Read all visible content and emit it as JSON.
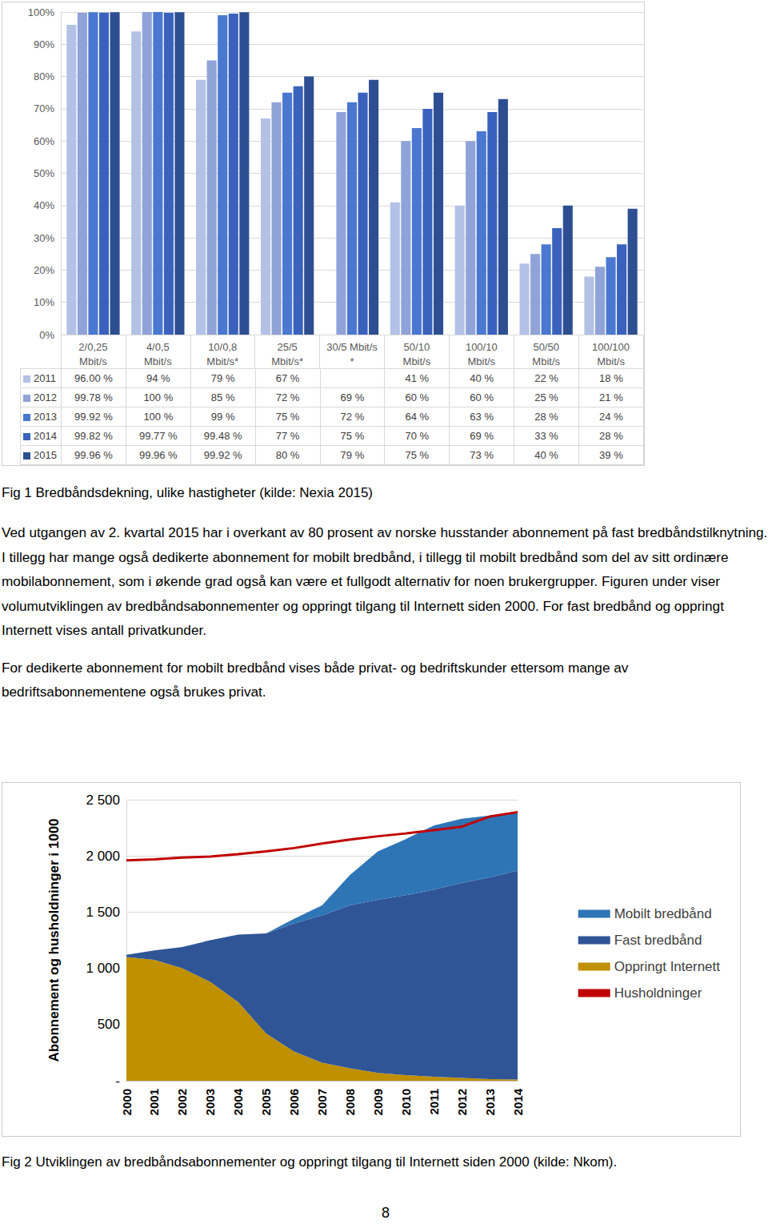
{
  "chart_data": [
    {
      "type": "bar",
      "caption": "Fig 1 Bredbåndsdekning, ulike hastigheter (kilde: Nexia 2015)",
      "categories": [
        "2/0,25\nMbit/s",
        "4/0,5\nMbit/s",
        "10/0,8\nMbit/s*",
        "25/5\nMbit/s*",
        "30/5 Mbit/s\n*",
        "50/10\nMbit/s",
        "100/10\nMbit/s",
        "50/50\nMbit/s",
        "100/100\nMbit/s"
      ],
      "series": [
        {
          "name": "2011",
          "color": "#b4c1e6",
          "values": [
            96,
            94,
            79,
            67,
            null,
            41,
            40,
            22,
            18
          ],
          "value_labels": [
            "96.00 %",
            "94 %",
            "79 %",
            "67 %",
            null,
            "41 %",
            "40 %",
            "22 %",
            "18 %"
          ]
        },
        {
          "name": "2012",
          "color": "#8fa3d8",
          "values": [
            99.78,
            100,
            85,
            72,
            69,
            60,
            60,
            25,
            21
          ],
          "value_labels": [
            "99.78 %",
            "100 %",
            "85 %",
            "72 %",
            "69 %",
            "60 %",
            "60 %",
            "25 %",
            "21 %"
          ]
        },
        {
          "name": "2013",
          "color": "#4a78d0",
          "values": [
            99.92,
            100,
            99,
            75,
            72,
            64,
            63,
            28,
            24
          ],
          "value_labels": [
            "99.92 %",
            "100 %",
            "99 %",
            "75 %",
            "72 %",
            "64 %",
            "63 %",
            "28 %",
            "24 %"
          ]
        },
        {
          "name": "2014",
          "color": "#3a62bd",
          "values": [
            99.82,
            99.77,
            99.48,
            77,
            75,
            70,
            69,
            33,
            28
          ],
          "value_labels": [
            "99.82 %",
            "99.77 %",
            "99.48 %",
            "77 %",
            "75 %",
            "70 %",
            "69 %",
            "33 %",
            "28 %"
          ]
        },
        {
          "name": "2015",
          "color": "#2d4f92",
          "values": [
            99.96,
            99.96,
            99.92,
            80,
            79,
            75,
            73,
            40,
            39
          ],
          "value_labels": [
            "99.96 %",
            "99.96 %",
            "99.92 %",
            "80 %",
            "79 %",
            "75 %",
            "73 %",
            "40 %",
            "39 %"
          ]
        }
      ],
      "ylim": [
        0,
        100
      ],
      "yticks": [
        {
          "value": 0,
          "label": "0%"
        },
        {
          "value": 10,
          "label": "10%"
        },
        {
          "value": 20,
          "label": "20%"
        },
        {
          "value": 30,
          "label": "30%"
        },
        {
          "value": 40,
          "label": "40%"
        },
        {
          "value": 50,
          "label": "50%"
        },
        {
          "value": 60,
          "label": "60%"
        },
        {
          "value": 70,
          "label": "70%"
        },
        {
          "value": 80,
          "label": "80%"
        },
        {
          "value": 90,
          "label": "90%"
        },
        {
          "value": 100,
          "label": "100%"
        }
      ],
      "grid": true
    },
    {
      "type": "area",
      "caption": "Fig 2 Utviklingen av bredbåndsabonnementer og oppringt tilgang til Internett siden 2000 (kilde: Nkom).",
      "ylabel": "Abonnement og husholdninger i 1000",
      "categories": [
        "2000",
        "2001",
        "2002",
        "2003",
        "2004",
        "2005",
        "2006",
        "2007",
        "2008",
        "2009",
        "2010",
        "2011",
        "2012",
        "2013",
        "2014"
      ],
      "series": [
        {
          "name": "Mobilt bredbånd",
          "type": "area",
          "color": "#2e75b6",
          "values": [
            0,
            0,
            0,
            0,
            0,
            0,
            40,
            90,
            270,
            430,
            500,
            570,
            570,
            550,
            510
          ]
        },
        {
          "name": "Fast bredbånd",
          "type": "area",
          "color": "#2f5597",
          "values": [
            20,
            85,
            190,
            370,
            600,
            890,
            1140,
            1310,
            1450,
            1540,
            1600,
            1665,
            1735,
            1795,
            1860
          ]
        },
        {
          "name": "Oppringt Internett",
          "type": "area",
          "color": "#bf9000",
          "values": [
            1100,
            1075,
            1000,
            880,
            700,
            420,
            260,
            160,
            110,
            70,
            50,
            35,
            25,
            15,
            10
          ]
        },
        {
          "name": "Husholdninger",
          "type": "line",
          "color": "#c00000",
          "values": [
            1960,
            1970,
            1985,
            1995,
            2015,
            2040,
            2070,
            2110,
            2145,
            2175,
            2200,
            2230,
            2260,
            2350,
            2390
          ]
        }
      ],
      "ylim": [
        0,
        2500
      ],
      "yticks": [
        {
          "value": 0,
          "label": "-"
        },
        500,
        {
          "value": 1000,
          "label": "1 000"
        },
        {
          "value": 1500,
          "label": "1 500"
        },
        {
          "value": 2000,
          "label": "2 000"
        },
        {
          "value": 2500,
          "label": "2 500"
        }
      ],
      "grid": true,
      "stacked": true,
      "legend": "right"
    }
  ],
  "document": {
    "paragraphs": [
      "Ved utgangen av 2. kvartal 2015 har i overkant av 80 prosent av norske husstander abonnement på fast bredbåndstilknytning. I tillegg har mange også dedikerte abonnement for mobilt bredbånd, i tillegg til mobilt bredbånd som del av sitt ordinære mobilabonnement, som i økende grad også kan være et fullgodt alternativ for noen brukergrupper. Figuren under viser volumutviklingen av bredbåndsabonnementer og oppringt tilgang til Internett siden 2000. For fast bredbånd og oppringt Internett vises antall privatkunder.",
      "For dedikerte abonnement for mobilt bredbånd vises både privat- og bedriftskunder ettersom mange av bedriftsabonnementene også brukes privat."
    ],
    "page_number": "8"
  }
}
